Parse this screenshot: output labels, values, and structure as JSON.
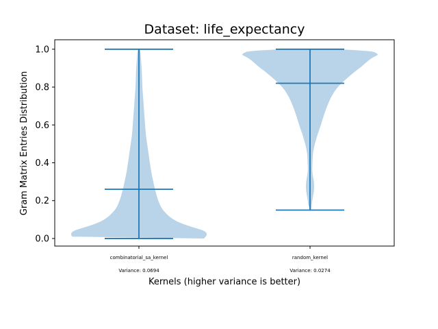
{
  "chart_data": {
    "type": "violin",
    "title": "Dataset: life_expectancy",
    "xlabel": "Kernels (higher variance is better)",
    "ylabel": "Gram Matrix Entries Distribution",
    "ylim": [
      -0.04,
      1.05
    ],
    "yticks": [
      "0.0",
      "0.2",
      "0.4",
      "0.6",
      "0.8",
      "1.0"
    ],
    "color": "#1f77b4",
    "fill_color": "#b9d4e8",
    "series": [
      {
        "category": "combinatorial_sa_kernel",
        "variance_label": "Variance: 0.0694",
        "min": 0.0,
        "median": 0.26,
        "max": 1.0,
        "density": [
          [
            0.0,
            0.95
          ],
          [
            0.02,
            1.0
          ],
          [
            0.04,
            0.97
          ],
          [
            0.06,
            0.78
          ],
          [
            0.08,
            0.62
          ],
          [
            0.1,
            0.5
          ],
          [
            0.13,
            0.4
          ],
          [
            0.16,
            0.33
          ],
          [
            0.2,
            0.28
          ],
          [
            0.25,
            0.24
          ],
          [
            0.3,
            0.21
          ],
          [
            0.35,
            0.18
          ],
          [
            0.4,
            0.16
          ],
          [
            0.45,
            0.14
          ],
          [
            0.5,
            0.12
          ],
          [
            0.55,
            0.1
          ],
          [
            0.6,
            0.09
          ],
          [
            0.65,
            0.08
          ],
          [
            0.7,
            0.07
          ],
          [
            0.75,
            0.06
          ],
          [
            0.8,
            0.05
          ],
          [
            0.85,
            0.045
          ],
          [
            0.9,
            0.04
          ],
          [
            0.95,
            0.03
          ],
          [
            1.0,
            0.02
          ]
        ]
      },
      {
        "category": "random_kernel",
        "variance_label": "Variance: 0.0274",
        "min": 0.15,
        "median": 0.82,
        "max": 1.0,
        "density": [
          [
            0.15,
            0.02
          ],
          [
            0.2,
            0.03
          ],
          [
            0.25,
            0.06
          ],
          [
            0.3,
            0.06
          ],
          [
            0.35,
            0.03
          ],
          [
            0.4,
            0.035
          ],
          [
            0.45,
            0.04
          ],
          [
            0.5,
            0.07
          ],
          [
            0.55,
            0.11
          ],
          [
            0.6,
            0.16
          ],
          [
            0.65,
            0.2
          ],
          [
            0.7,
            0.25
          ],
          [
            0.75,
            0.31
          ],
          [
            0.8,
            0.4
          ],
          [
            0.85,
            0.55
          ],
          [
            0.88,
            0.65
          ],
          [
            0.91,
            0.76
          ],
          [
            0.94,
            0.85
          ],
          [
            0.96,
            0.93
          ],
          [
            0.97,
            1.0
          ],
          [
            0.98,
            0.97
          ],
          [
            0.99,
            0.9
          ],
          [
            1.0,
            0.45
          ]
        ]
      }
    ]
  }
}
